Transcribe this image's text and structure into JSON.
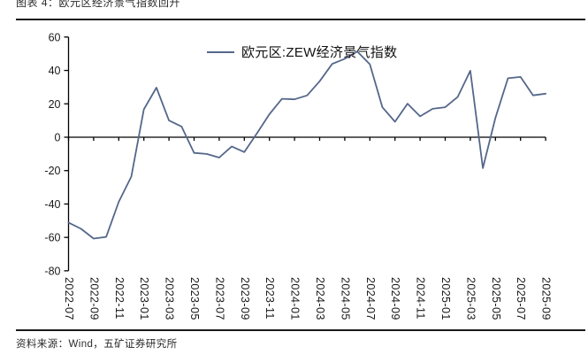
{
  "figure": {
    "title": "图表 4：欧元区经济景气指数回升",
    "source": "资料来源：Wind，五矿证券研究所"
  },
  "legend": {
    "label": "欧元区:ZEW经济景气指数"
  },
  "colors": {
    "line": "#54678a",
    "axis": "#000000",
    "tick_text": "#1a1a1a",
    "rule": "#1a1a1a"
  },
  "chart_data": {
    "type": "line",
    "title": "",
    "xlabel": "",
    "ylabel": "",
    "ylim": [
      -80,
      60
    ],
    "y_ticks": [
      60,
      40,
      20,
      0,
      -20,
      -40,
      -60,
      -80
    ],
    "x_tick_every": 2,
    "grid": "off",
    "legend_position": "top-center",
    "x": [
      "2022-07",
      "2022-08",
      "2022-09",
      "2022-10",
      "2022-11",
      "2022-12",
      "2023-01",
      "2023-02",
      "2023-03",
      "2023-04",
      "2023-05",
      "2023-06",
      "2023-07",
      "2023-08",
      "2023-09",
      "2023-10",
      "2023-11",
      "2023-12",
      "2024-01",
      "2024-02",
      "2024-03",
      "2024-04",
      "2024-05",
      "2024-06",
      "2024-07",
      "2024-08",
      "2024-09",
      "2024-10",
      "2024-11",
      "2024-12",
      "2025-01",
      "2025-02",
      "2025-03",
      "2025-04",
      "2025-05",
      "2025-06",
      "2025-07",
      "2025-08",
      "2025-09"
    ],
    "series": [
      {
        "name": "欧元区:ZEW经济景气指数",
        "values": [
          -51.1,
          -54.9,
          -60.7,
          -59.7,
          -38.7,
          -23.6,
          16.7,
          29.7,
          10.0,
          6.4,
          -9.4,
          -10.0,
          -12.2,
          -5.5,
          -8.9,
          2.3,
          13.8,
          23.0,
          22.7,
          25.0,
          33.5,
          43.9,
          47.0,
          51.3,
          43.7,
          17.9,
          9.3,
          20.1,
          12.5,
          17.0,
          18.0,
          24.2,
          39.8,
          -18.5,
          11.6,
          35.3,
          36.1,
          25.1,
          26.1
        ]
      }
    ]
  }
}
